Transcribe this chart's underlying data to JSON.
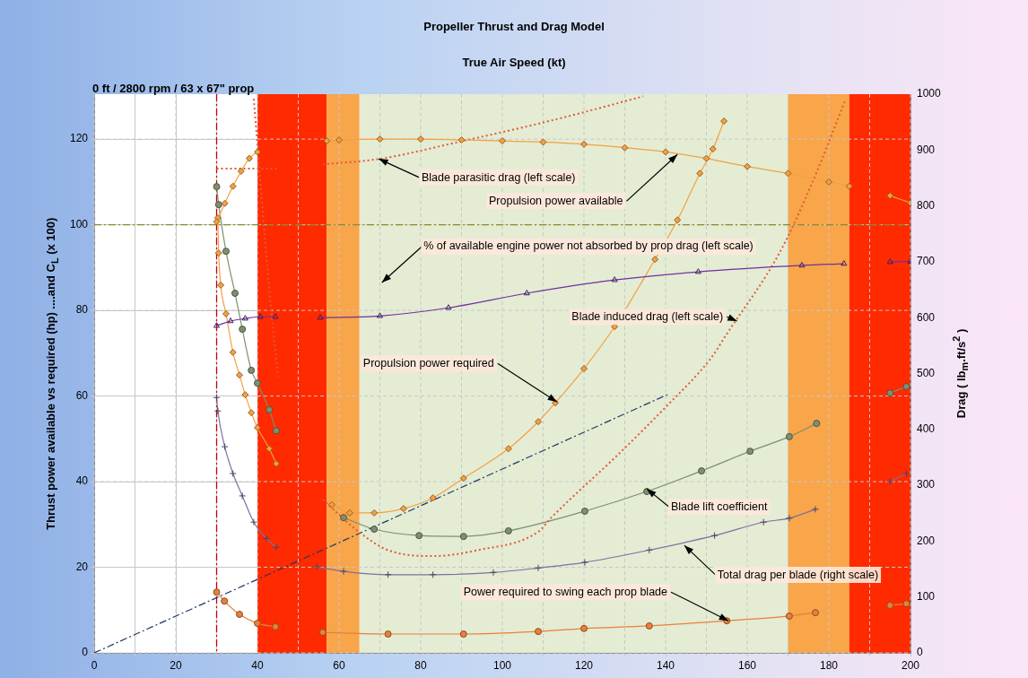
{
  "chart_data": {
    "type": "line",
    "title": "Propeller Thrust and Drag Model",
    "xlabel": "True Air Speed (kt)",
    "ylabel": "Thrust power available  vs required (hp)  ....and  C$_{L}$ (x 100)",
    "y2label": "Drag  ( lb$_{m}$.ft/s$^{2}$ )",
    "annotations": [
      "0 ft / 2800 rpm / 63 x 67\" prop"
    ],
    "xlim": [
      0,
      200
    ],
    "xticks": [
      0,
      {
        "value": 10,
        "label": null
      },
      20,
      {
        "value": 30,
        "label": null
      },
      40,
      {
        "value": 50,
        "label": null
      },
      60,
      {
        "value": 70,
        "label": null
      },
      80,
      {
        "value": 90,
        "label": null
      },
      100,
      {
        "value": 110,
        "label": null
      },
      120,
      {
        "value": 130,
        "label": null
      },
      140,
      {
        "value": 150,
        "label": null
      },
      160,
      {
        "value": 170,
        "label": null
      },
      180,
      {
        "value": 190,
        "label": null
      },
      200
    ],
    "ylim": [
      0,
      130.5
    ],
    "yticks": [
      0,
      20,
      40,
      60,
      80,
      100,
      120
    ],
    "y2lim": [
      0,
      1000
    ],
    "y2ticks": [
      0,
      100,
      200,
      300,
      400,
      500,
      600,
      700,
      800,
      900,
      1000
    ],
    "grid": true,
    "legend": false,
    "bands": [
      {
        "axis": "x",
        "from": 40,
        "to": 57,
        "color": "#ff2a00"
      },
      {
        "axis": "x",
        "from": 57,
        "to": 65,
        "color": "#f9a54a"
      },
      {
        "axis": "x",
        "from": 65,
        "to": 170,
        "color": "#e4ecd4"
      },
      {
        "axis": "x",
        "from": 170,
        "to": 185,
        "color": "#f9a54a"
      },
      {
        "axis": "x",
        "from": 185,
        "to": 200,
        "color": "#ff2a00"
      }
    ],
    "ref_lines": [
      {
        "axis": "x",
        "value": 30,
        "color": "#c00000",
        "line_style": "dashed"
      },
      {
        "axis": "y",
        "value": 100,
        "color": "#8a8a2a",
        "line_style": "dashed"
      }
    ],
    "series": [
      {
        "name": "Propulsion power available",
        "color": "#f4a040",
        "marker": "diamond",
        "line_style": "solid",
        "x": [
          30,
          32,
          34,
          36,
          38,
          40,
          50,
          57,
          60,
          70,
          80,
          90,
          100,
          110,
          120,
          130,
          140,
          150,
          160,
          170,
          180,
          185,
          190,
          195,
          200
        ],
        "values": [
          100.7,
          105,
          109,
          112.5,
          115.5,
          117,
          null,
          119.6,
          119.8,
          120,
          120,
          119.8,
          119.6,
          119.3,
          118.8,
          118,
          117,
          115.5,
          113.6,
          112,
          110,
          109,
          null,
          106.8,
          105.1
        ]
      },
      {
        "name": "Blade parasitic drag (left scale)",
        "color": "#e05a3a",
        "marker": "none",
        "line_style": "dotted",
        "x": [
          30,
          38,
          45,
          50,
          56,
          70,
          90,
          108.8,
          120,
          134.5
        ],
        "values": [
          113.1,
          113.1,
          113.1,
          null,
          114.1,
          115.4,
          119.5,
          123.6,
          126.3,
          130
        ]
      },
      {
        "name": "% of available engine power not absorbed by prop drag (left scale)",
        "color": "#7030a0",
        "marker": "triangle",
        "line_style": "solid",
        "x": [
          30,
          33.4,
          37,
          40.7,
          44.4,
          50,
          55.4,
          70,
          86.8,
          106,
          127.5,
          148,
          173.4,
          183.7,
          190,
          195,
          200
        ],
        "values": [
          76.4,
          77.5,
          78.1,
          78.5,
          78.5,
          null,
          78.3,
          78.7,
          80.6,
          84,
          87.1,
          89,
          90.5,
          90.9,
          null,
          91.3,
          91.4
        ]
      },
      {
        "name": "Blade induced drag (left scale)",
        "color": "#e05a3a",
        "marker": "none",
        "line_style": "dotted",
        "x": [
          39.1,
          42.9,
          45,
          50,
          56,
          64.8,
          72,
          83,
          94,
          108.8,
          112,
          128,
          140,
          151,
          155,
          168,
          176,
          184
        ],
        "values": [
          129.4,
          84.8,
          64.5,
          null,
          35.8,
          28.3,
          24,
          22.6,
          24,
          28.3,
          31.6,
          46,
          57.4,
          68.7,
          74.5,
          93.6,
          110,
          129
        ]
      },
      {
        "name": "Propulsion power required",
        "color": "#f4a040",
        "marker": "diamond",
        "line_style": "solid",
        "x": [
          30.3,
          30.5,
          31,
          32.3,
          34,
          35.6,
          37,
          38.5,
          40,
          42.9,
          44.6,
          50,
          58.2,
          62.6,
          68.6,
          75.8,
          83,
          90.5,
          101.5,
          108.8,
          113,
          120,
          127.5,
          137.4,
          142.9,
          148.4,
          151.6,
          154.3
        ],
        "values": [
          101.6,
          93.4,
          85.9,
          79.2,
          70.2,
          64.9,
          60.3,
          56.1,
          52.6,
          47.7,
          44.2,
          null,
          34.6,
          32.7,
          32.7,
          33.7,
          36.2,
          40.8,
          47.7,
          54,
          58.4,
          66.4,
          76.2,
          91.9,
          101.1,
          112,
          117.7,
          124.2
        ]
      },
      {
        "name": "Blade lift coefficient",
        "color": "#7f8f6f",
        "marker": "circle",
        "line_style": "solid",
        "x": [
          30,
          30.5,
          32.3,
          34.5,
          36.3,
          38.5,
          40,
          42.9,
          44.6,
          50,
          61.1,
          68.6,
          79.6,
          90.5,
          101.5,
          120.2,
          135.4,
          148.8,
          160.7,
          170.3,
          177,
          190,
          195,
          199
        ],
        "values": [
          108.9,
          104.7,
          93.8,
          84,
          75.6,
          66,
          63,
          56.8,
          51.9,
          null,
          31.6,
          28.9,
          27.4,
          27.2,
          28.5,
          33.1,
          37.7,
          42.5,
          47.1,
          50.5,
          53.6,
          null,
          60.7,
          62.2
        ]
      },
      {
        "name": "Total drag per blade (right scale)",
        "color": "#7f6fa0",
        "marker": "cross",
        "line_style": "solid",
        "axis": "y2",
        "x": [
          30,
          30.3,
          32,
          34,
          36.3,
          39.1,
          42.2,
          44.6,
          50,
          54.5,
          61.1,
          72,
          83,
          97.8,
          108.8,
          120.2,
          136,
          152,
          164,
          170.3,
          176.7,
          190,
          195,
          199
        ],
        "values": [
          457,
          433,
          369,
          321,
          281,
          234,
          205,
          189,
          null,
          154,
          146,
          140,
          140,
          144,
          152,
          162,
          184,
          210,
          234,
          241,
          257,
          null,
          307,
          321
        ]
      },
      {
        "name": "Power required to swing each prop blade",
        "color": "#e8803a",
        "marker": "circle",
        "line_style": "solid",
        "x": [
          30,
          31.9,
          35.6,
          40,
          44.4,
          50,
          56,
          72,
          90.5,
          108.8,
          120,
          136,
          155,
          170.3,
          176.7,
          190,
          195,
          199
        ],
        "values": [
          14.2,
          12.1,
          9,
          6.9,
          6.1,
          null,
          4.8,
          4.4,
          4.4,
          5,
          5.7,
          6.3,
          7.5,
          8.6,
          9.4,
          null,
          11.1,
          11.5
        ]
      },
      {
        "color": "#203864",
        "marker": "none",
        "line_style": "dashed",
        "x": [
          0,
          140.4
        ],
        "values": [
          0,
          60.3
        ]
      }
    ]
  }
}
